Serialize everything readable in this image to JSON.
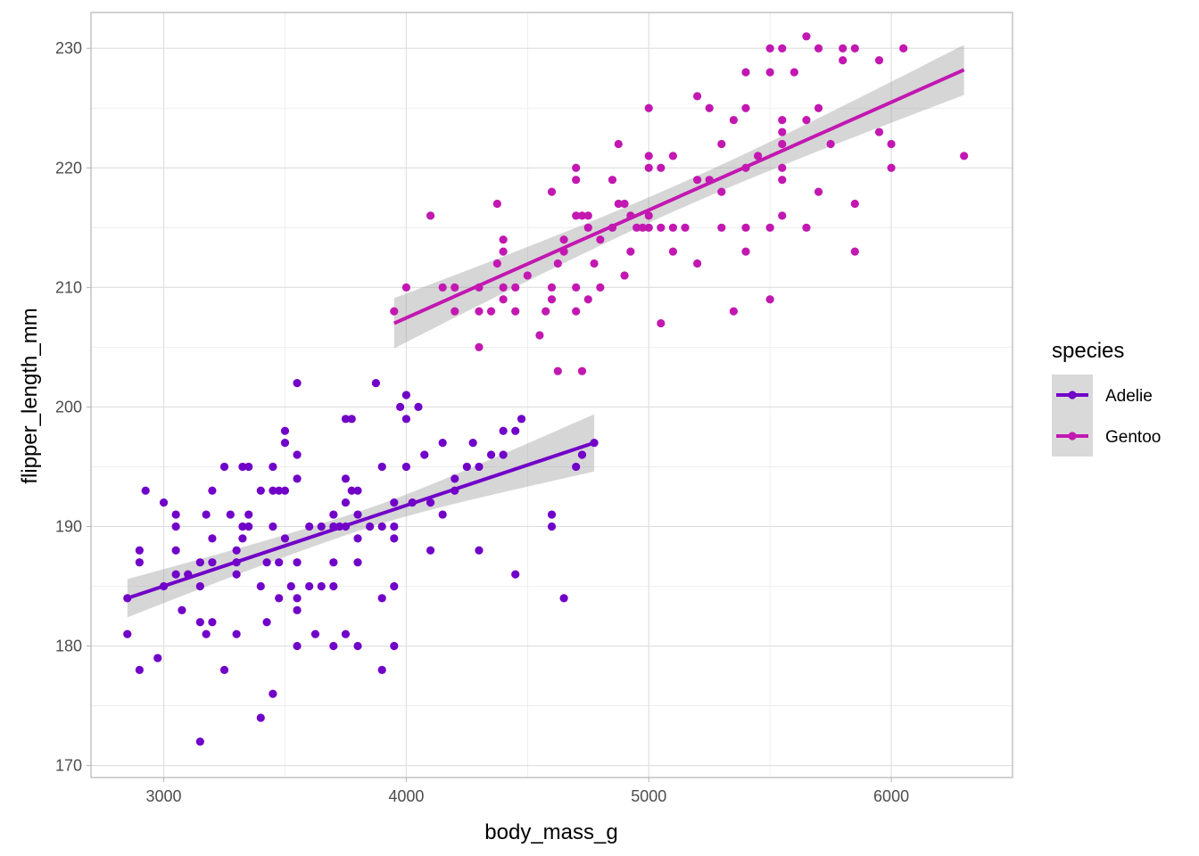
{
  "chart_data": {
    "type": "scatter",
    "title": "",
    "xlabel": "body_mass_g",
    "ylabel": "flipper_length_mm",
    "xlim": [
      2700,
      6500
    ],
    "ylim": [
      169,
      233
    ],
    "x_ticks": [
      3000,
      4000,
      5000,
      6000
    ],
    "y_ticks": [
      170,
      180,
      190,
      200,
      210,
      220,
      230
    ],
    "grid": true,
    "legend": {
      "title": "species",
      "placement": "right",
      "entries": [
        "Adelie",
        "Gentoo"
      ]
    },
    "series": [
      {
        "name": "Adelie",
        "color": "#7100C8",
        "trend": {
          "x": [
            2850,
            4775
          ],
          "y": [
            184,
            197
          ],
          "ci_low_start": 182.4,
          "ci_high_start": 185.6,
          "ci_low_end": 194.7,
          "ci_high_end": 199.5
        },
        "points": [
          [
            2850,
            181
          ],
          [
            2850,
            184
          ],
          [
            2900,
            178
          ],
          [
            2900,
            187
          ],
          [
            2900,
            188
          ],
          [
            2925,
            193
          ],
          [
            2975,
            179
          ],
          [
            3000,
            185
          ],
          [
            3000,
            192
          ],
          [
            3050,
            186
          ],
          [
            3050,
            188
          ],
          [
            3050,
            190
          ],
          [
            3050,
            191
          ],
          [
            3075,
            183
          ],
          [
            3100,
            186
          ],
          [
            3150,
            172
          ],
          [
            3150,
            182
          ],
          [
            3150,
            185
          ],
          [
            3150,
            187
          ],
          [
            3175,
            181
          ],
          [
            3175,
            191
          ],
          [
            3200,
            182
          ],
          [
            3200,
            187
          ],
          [
            3200,
            189
          ],
          [
            3200,
            193
          ],
          [
            3250,
            178
          ],
          [
            3250,
            195
          ],
          [
            3275,
            191
          ],
          [
            3300,
            181
          ],
          [
            3300,
            186
          ],
          [
            3300,
            187
          ],
          [
            3300,
            188
          ],
          [
            3325,
            189
          ],
          [
            3325,
            190
          ],
          [
            3325,
            195
          ],
          [
            3350,
            190
          ],
          [
            3350,
            195
          ],
          [
            3350,
            191
          ],
          [
            3400,
            174
          ],
          [
            3400,
            185
          ],
          [
            3400,
            193
          ],
          [
            3425,
            182
          ],
          [
            3425,
            187
          ],
          [
            3450,
            176
          ],
          [
            3450,
            190
          ],
          [
            3450,
            193
          ],
          [
            3450,
            195
          ],
          [
            3475,
            184
          ],
          [
            3475,
            187
          ],
          [
            3475,
            193
          ],
          [
            3500,
            189
          ],
          [
            3500,
            193
          ],
          [
            3500,
            197
          ],
          [
            3500,
            198
          ],
          [
            3525,
            185
          ],
          [
            3550,
            180
          ],
          [
            3550,
            184
          ],
          [
            3550,
            183
          ],
          [
            3550,
            187
          ],
          [
            3550,
            194
          ],
          [
            3550,
            196
          ],
          [
            3550,
            202
          ],
          [
            3600,
            185
          ],
          [
            3600,
            190
          ],
          [
            3625,
            181
          ],
          [
            3650,
            185
          ],
          [
            3650,
            190
          ],
          [
            3700,
            180
          ],
          [
            3700,
            185
          ],
          [
            3700,
            187
          ],
          [
            3700,
            190
          ],
          [
            3700,
            191
          ],
          [
            3725,
            190
          ],
          [
            3750,
            181
          ],
          [
            3750,
            190
          ],
          [
            3750,
            192
          ],
          [
            3750,
            194
          ],
          [
            3750,
            199
          ],
          [
            3775,
            193
          ],
          [
            3775,
            199
          ],
          [
            3800,
            187
          ],
          [
            3800,
            189
          ],
          [
            3800,
            191
          ],
          [
            3800,
            193
          ],
          [
            3800,
            180
          ],
          [
            3850,
            190
          ],
          [
            3875,
            202
          ],
          [
            3900,
            178
          ],
          [
            3900,
            184
          ],
          [
            3900,
            190
          ],
          [
            3900,
            195
          ],
          [
            3950,
            180
          ],
          [
            3950,
            185
          ],
          [
            3950,
            189
          ],
          [
            3950,
            190
          ],
          [
            3950,
            192
          ],
          [
            3975,
            200
          ],
          [
            4000,
            195
          ],
          [
            4000,
            199
          ],
          [
            4000,
            201
          ],
          [
            4025,
            192
          ],
          [
            4050,
            200
          ],
          [
            4075,
            196
          ],
          [
            4100,
            188
          ],
          [
            4100,
            192
          ],
          [
            4150,
            191
          ],
          [
            4150,
            197
          ],
          [
            4200,
            193
          ],
          [
            4200,
            194
          ],
          [
            4250,
            195
          ],
          [
            4275,
            197
          ],
          [
            4300,
            188
          ],
          [
            4300,
            195
          ],
          [
            4350,
            196
          ],
          [
            4400,
            196
          ],
          [
            4400,
            198
          ],
          [
            4450,
            186
          ],
          [
            4450,
            198
          ],
          [
            4475,
            199
          ],
          [
            4600,
            190
          ],
          [
            4600,
            191
          ],
          [
            4650,
            184
          ],
          [
            4700,
            195
          ],
          [
            4725,
            196
          ],
          [
            4775,
            197
          ]
        ]
      },
      {
        "name": "Gentoo",
        "color": "#C218B1",
        "trend": {
          "x": [
            3950,
            6300
          ],
          "y": [
            207,
            228.2
          ],
          "ci_low_start": 204.9,
          "ci_high_start": 209.1,
          "ci_low_end": 226.1,
          "ci_high_end": 230.3
        },
        "points": [
          [
            3950,
            208
          ],
          [
            4000,
            210
          ],
          [
            4100,
            216
          ],
          [
            4150,
            210
          ],
          [
            4200,
            208
          ],
          [
            4200,
            210
          ],
          [
            4300,
            205
          ],
          [
            4300,
            208
          ],
          [
            4300,
            210
          ],
          [
            4350,
            208
          ],
          [
            4375,
            212
          ],
          [
            4375,
            217
          ],
          [
            4400,
            209
          ],
          [
            4400,
            210
          ],
          [
            4400,
            213
          ],
          [
            4400,
            214
          ],
          [
            4450,
            208
          ],
          [
            4450,
            210
          ],
          [
            4500,
            211
          ],
          [
            4550,
            206
          ],
          [
            4575,
            208
          ],
          [
            4600,
            209
          ],
          [
            4600,
            210
          ],
          [
            4600,
            218
          ],
          [
            4625,
            203
          ],
          [
            4625,
            212
          ],
          [
            4650,
            213
          ],
          [
            4650,
            214
          ],
          [
            4700,
            208
          ],
          [
            4700,
            210
          ],
          [
            4700,
            216
          ],
          [
            4700,
            219
          ],
          [
            4700,
            220
          ],
          [
            4725,
            203
          ],
          [
            4725,
            216
          ],
          [
            4750,
            209
          ],
          [
            4750,
            215
          ],
          [
            4750,
            216
          ],
          [
            4775,
            212
          ],
          [
            4800,
            210
          ],
          [
            4800,
            214
          ],
          [
            4850,
            219
          ],
          [
            4850,
            215
          ],
          [
            4875,
            222
          ],
          [
            4875,
            217
          ],
          [
            4900,
            217
          ],
          [
            4900,
            211
          ],
          [
            4925,
            213
          ],
          [
            4925,
            216
          ],
          [
            4950,
            215
          ],
          [
            4975,
            215
          ],
          [
            5000,
            215
          ],
          [
            5000,
            216
          ],
          [
            5000,
            220
          ],
          [
            5000,
            221
          ],
          [
            5000,
            225
          ],
          [
            5050,
            207
          ],
          [
            5050,
            215
          ],
          [
            5050,
            220
          ],
          [
            5100,
            215
          ],
          [
            5100,
            213
          ],
          [
            5100,
            221
          ],
          [
            5150,
            215
          ],
          [
            5200,
            212
          ],
          [
            5200,
            219
          ],
          [
            5200,
            226
          ],
          [
            5250,
            219
          ],
          [
            5250,
            225
          ],
          [
            5300,
            218
          ],
          [
            5300,
            222
          ],
          [
            5300,
            215
          ],
          [
            5350,
            208
          ],
          [
            5350,
            224
          ],
          [
            5400,
            213
          ],
          [
            5400,
            215
          ],
          [
            5400,
            220
          ],
          [
            5400,
            225
          ],
          [
            5400,
            228
          ],
          [
            5450,
            221
          ],
          [
            5500,
            209
          ],
          [
            5500,
            215
          ],
          [
            5500,
            228
          ],
          [
            5500,
            230
          ],
          [
            5550,
            216
          ],
          [
            5550,
            219
          ],
          [
            5550,
            220
          ],
          [
            5550,
            222
          ],
          [
            5550,
            223
          ],
          [
            5550,
            224
          ],
          [
            5550,
            230
          ],
          [
            5600,
            228
          ],
          [
            5650,
            215
          ],
          [
            5650,
            224
          ],
          [
            5650,
            231
          ],
          [
            5700,
            218
          ],
          [
            5700,
            225
          ],
          [
            5700,
            230
          ],
          [
            5750,
            222
          ],
          [
            5800,
            229
          ],
          [
            5800,
            230
          ],
          [
            5850,
            213
          ],
          [
            5850,
            217
          ],
          [
            5850,
            230
          ],
          [
            5950,
            223
          ],
          [
            5950,
            229
          ],
          [
            6000,
            220
          ],
          [
            6000,
            222
          ],
          [
            6050,
            230
          ],
          [
            6300,
            221
          ]
        ]
      }
    ]
  }
}
